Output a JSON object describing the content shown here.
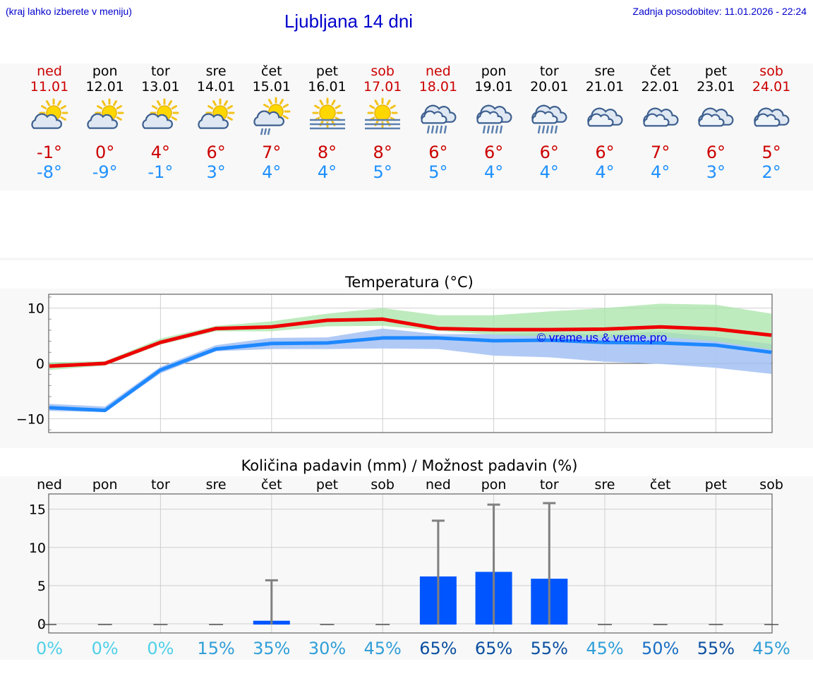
{
  "header": {
    "location_note": "(kraj lahko izberete v meniju)",
    "title": "Ljubljana 14 dni",
    "updated": "Zadnja posodobitev: 11.01.2026 - 22:24"
  },
  "days": [
    {
      "name": "ned",
      "date": "11.01",
      "icon": "partly-sunny-icon",
      "tmax": "-1°",
      "tmin": "-8°",
      "weekend": true
    },
    {
      "name": "pon",
      "date": "12.01",
      "icon": "partly-sunny-icon",
      "tmax": "0°",
      "tmin": "-9°",
      "weekend": false
    },
    {
      "name": "tor",
      "date": "13.01",
      "icon": "partly-sunny-icon",
      "tmax": "4°",
      "tmin": "-1°",
      "weekend": false
    },
    {
      "name": "sre",
      "date": "14.01",
      "icon": "partly-sunny-icon",
      "tmax": "6°",
      "tmin": "3°",
      "weekend": false
    },
    {
      "name": "čet",
      "date": "15.01",
      "icon": "sun-cloud-drizzle-icon",
      "tmax": "7°",
      "tmin": "4°",
      "weekend": false
    },
    {
      "name": "pet",
      "date": "16.01",
      "icon": "sun-fog-icon",
      "tmax": "8°",
      "tmin": "4°",
      "weekend": false
    },
    {
      "name": "sob",
      "date": "17.01",
      "icon": "sun-fog-icon",
      "tmax": "8°",
      "tmin": "5°",
      "weekend": true
    },
    {
      "name": "ned",
      "date": "18.01",
      "icon": "rain-cloud-icon",
      "tmax": "6°",
      "tmin": "5°",
      "weekend": true
    },
    {
      "name": "pon",
      "date": "19.01",
      "icon": "rain-cloud-icon",
      "tmax": "6°",
      "tmin": "4°",
      "weekend": false
    },
    {
      "name": "tor",
      "date": "20.01",
      "icon": "rain-cloud-icon",
      "tmax": "6°",
      "tmin": "4°",
      "weekend": false
    },
    {
      "name": "sre",
      "date": "21.01",
      "icon": "cloud-icon",
      "tmax": "6°",
      "tmin": "4°",
      "weekend": false
    },
    {
      "name": "čet",
      "date": "22.01",
      "icon": "cloud-icon",
      "tmax": "7°",
      "tmin": "4°",
      "weekend": false
    },
    {
      "name": "pet",
      "date": "23.01",
      "icon": "cloud-icon",
      "tmax": "6°",
      "tmin": "3°",
      "weekend": false
    },
    {
      "name": "sob",
      "date": "24.01",
      "icon": "cloud-icon",
      "tmax": "5°",
      "tmin": "2°",
      "weekend": true
    }
  ],
  "colors": {
    "weekend": "#cc0000",
    "weekday": "#000000",
    "max_line": "#ee0000",
    "min_line": "#1e88ff",
    "max_band": "#a8e4a8",
    "min_band": "#a9c4f4",
    "bar": "#0055ff",
    "whisker": "#808080",
    "watermark": "#0000ee"
  },
  "chart_data": [
    {
      "type": "line",
      "title": "Temperatura (°C)",
      "watermark": "© vreme.us & vreme.pro",
      "x": [
        "11.01",
        "12.01",
        "13.01",
        "14.01",
        "15.01",
        "16.01",
        "17.01",
        "18.01",
        "19.01",
        "20.01",
        "21.01",
        "22.01",
        "23.01",
        "24.01"
      ],
      "ylim": [
        -12.5,
        12.5
      ],
      "yticks": [
        10,
        0,
        -10
      ],
      "series": [
        {
          "name": "max",
          "values": [
            -0.5,
            0,
            3.8,
            6.3,
            6.6,
            7.8,
            8,
            6.3,
            6.1,
            6.1,
            6.2,
            6.6,
            6.2,
            5.1
          ]
        },
        {
          "name": "min",
          "values": [
            -8,
            -8.5,
            -1.2,
            2.6,
            3.6,
            3.7,
            4.6,
            4.6,
            4.1,
            4.2,
            3.8,
            3.7,
            3.3,
            2
          ]
        },
        {
          "name": "max_range_high",
          "values": [
            0.2,
            0.4,
            4.5,
            6.8,
            7.6,
            9,
            10,
            8.7,
            8.7,
            9.4,
            10,
            10.8,
            10.6,
            9
          ]
        },
        {
          "name": "max_range_low",
          "values": [
            -1.2,
            -0.4,
            3.4,
            5.8,
            5.8,
            6.7,
            6.8,
            5.9,
            5.2,
            4.8,
            4.7,
            4.8,
            4,
            2.5
          ]
        },
        {
          "name": "min_range_high",
          "values": [
            -7.3,
            -7.8,
            -0.6,
            3.3,
            4.6,
            4.7,
            6.3,
            5.3,
            5.3,
            5.5,
            5.2,
            5.7,
            4.8,
            3.5
          ]
        },
        {
          "name": "min_range_low",
          "values": [
            -8.6,
            -8.8,
            -1.8,
            2.2,
            2.6,
            2.6,
            2.7,
            2.6,
            1.4,
            1.1,
            0.3,
            -0.1,
            -0.8,
            -1.9
          ]
        }
      ]
    },
    {
      "type": "bar",
      "title": "Količina padavin (mm) / Možnost padavin (%)",
      "categories": [
        "ned",
        "pon",
        "tor",
        "sre",
        "čet",
        "pet",
        "sob",
        "ned",
        "pon",
        "tor",
        "sre",
        "čet",
        "pet",
        "sob"
      ],
      "values": [
        0,
        0,
        0,
        0,
        0.4,
        0,
        0,
        6.2,
        6.8,
        5.9,
        0,
        0,
        0,
        0
      ],
      "whisker_max": [
        0,
        0,
        0,
        0,
        5.7,
        0,
        0,
        13.5,
        15.6,
        15.8,
        0,
        0,
        0,
        0
      ],
      "probability": [
        "0%",
        "0%",
        "0%",
        "15%",
        "35%",
        "30%",
        "45%",
        "65%",
        "65%",
        "55%",
        "45%",
        "50%",
        "55%",
        "45%"
      ],
      "probability_values": [
        0,
        0,
        0,
        15,
        35,
        30,
        45,
        65,
        65,
        55,
        45,
        50,
        55,
        45
      ],
      "ylim": [
        -1.2,
        17
      ],
      "yticks": [
        15,
        10,
        5,
        0
      ]
    }
  ]
}
